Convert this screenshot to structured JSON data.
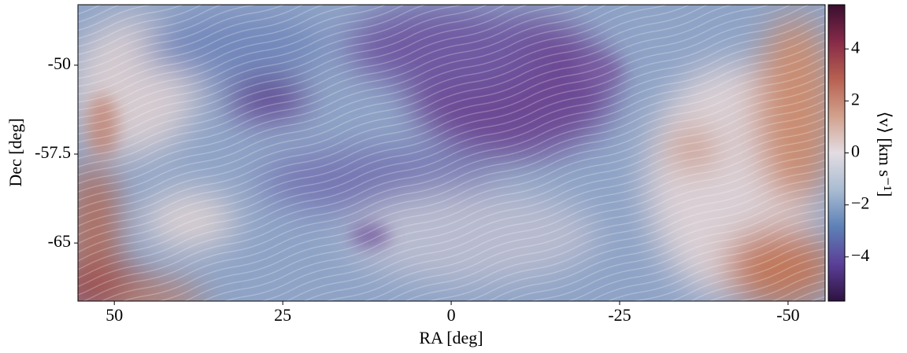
{
  "chart_data": {
    "type": "image",
    "xlabel": "RA [deg]",
    "ylabel": "Dec [deg]",
    "xlim": [
      55.4,
      -55.5
    ],
    "xticks": [
      50,
      25,
      0,
      -25,
      -50
    ],
    "ylim": [
      -69.9,
      -44.9
    ],
    "yticks": [
      -50,
      -57.5,
      -65
    ],
    "colorbar_label": "⟨v⟩ [km s⁻¹]",
    "clim": [
      -5.7,
      5.7
    ],
    "cticks": [
      {
        "value": -4,
        "label": "−4"
      },
      {
        "value": -2,
        "label": "−2"
      },
      0,
      2,
      4
    ],
    "colormap": [
      "#2e1240",
      "#5b3f98",
      "#5d80b6",
      "#a9bcd2",
      "#e3dce2",
      "#d2a08c",
      "#b76050",
      "#862a48",
      "#3a0e30"
    ]
  }
}
